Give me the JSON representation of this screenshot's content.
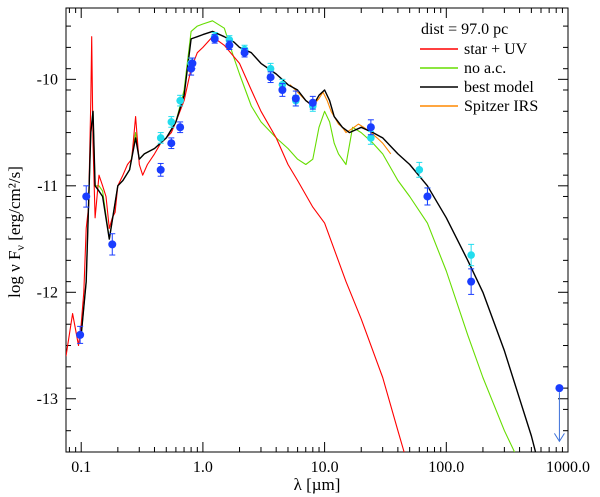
{
  "chart_data": {
    "type": "line",
    "annotation": "dist = 97.0 pc",
    "xlabel": "λ [µm]",
    "ylabel": "log ν F",
    "ylabel_sub": "ν",
    "ylabel_units": " [erg/cm²/s]",
    "xscale": "log",
    "xlim": [
      0.075,
      1000.0
    ],
    "ylim": [
      -13.5,
      -9.33
    ],
    "x_ticks": [
      {
        "value": 0.1,
        "label": "0.1"
      },
      {
        "value": 1.0,
        "label": "1.0"
      },
      {
        "value": 10.0,
        "label": "10.0"
      },
      {
        "value": 100.0,
        "label": "100.0"
      },
      {
        "value": 1000.0,
        "label": "1000.0"
      }
    ],
    "y_ticks": [
      {
        "value": -10,
        "label": "-10"
      },
      {
        "value": -11,
        "label": "-11"
      },
      {
        "value": -12,
        "label": "-12"
      },
      {
        "value": -13,
        "label": "-13"
      }
    ],
    "legend_position": "top-right",
    "series": [
      {
        "name": "star + UV",
        "color": "#ff0000",
        "x": [
          0.075,
          0.085,
          0.095,
          0.1,
          0.105,
          0.11,
          0.115,
          0.12,
          0.122,
          0.125,
          0.13,
          0.14,
          0.15,
          0.16,
          0.17,
          0.18,
          0.19,
          0.2,
          0.22,
          0.24,
          0.26,
          0.28,
          0.3,
          0.32,
          0.35,
          0.4,
          0.45,
          0.5,
          0.55,
          0.6,
          0.7,
          0.8,
          0.9,
          1.0,
          1.2,
          1.5,
          2.0,
          2.5,
          3.0,
          4.0,
          5.0,
          6.0,
          8.0,
          10.0,
          15.0,
          20.0,
          30.0,
          40.0,
          45.0
        ],
        "y": [
          -12.6,
          -12.2,
          -12.5,
          -12.3,
          -12.0,
          -11.4,
          -11.2,
          -10.2,
          -9.6,
          -10.6,
          -11.3,
          -10.9,
          -11.0,
          -11.1,
          -11.4,
          -11.3,
          -11.25,
          -11.0,
          -10.9,
          -10.8,
          -10.75,
          -10.35,
          -10.8,
          -10.9,
          -10.8,
          -10.7,
          -10.6,
          -10.55,
          -10.5,
          -10.4,
          -10.2,
          -9.9,
          -9.75,
          -9.7,
          -9.6,
          -9.68,
          -9.85,
          -10.1,
          -10.3,
          -10.55,
          -10.8,
          -10.95,
          -11.2,
          -11.35,
          -11.9,
          -12.25,
          -12.8,
          -13.3,
          -13.5
        ]
      },
      {
        "name": "no a.c.",
        "color": "#66dd00",
        "x": [
          0.1,
          0.11,
          0.12,
          0.125,
          0.13,
          0.14,
          0.15,
          0.17,
          0.2,
          0.22,
          0.25,
          0.28,
          0.3,
          0.33,
          0.4,
          0.5,
          0.6,
          0.7,
          0.8,
          0.9,
          1.0,
          1.2,
          1.5,
          1.8,
          2.0,
          2.5,
          3.0,
          4.0,
          5.0,
          6.0,
          7.0,
          8.0,
          9.0,
          10.0,
          11.0,
          12.0,
          13.0,
          15.0,
          17.0,
          20.0,
          25.0,
          30.0,
          40.0,
          50.0,
          70.0,
          100.0,
          150.0,
          200.0,
          300.0,
          400.0
        ],
        "y": [
          -12.4,
          -11.9,
          -10.5,
          -10.3,
          -11.0,
          -11.0,
          -11.05,
          -11.5,
          -11.0,
          -10.95,
          -10.85,
          -10.5,
          -10.75,
          -10.7,
          -10.65,
          -10.55,
          -10.4,
          -10.1,
          -9.55,
          -9.5,
          -9.48,
          -9.45,
          -9.52,
          -9.8,
          -9.95,
          -10.25,
          -10.4,
          -10.55,
          -10.65,
          -10.75,
          -10.8,
          -10.75,
          -10.45,
          -10.3,
          -10.4,
          -10.6,
          -10.7,
          -10.8,
          -10.45,
          -10.5,
          -10.6,
          -10.7,
          -10.95,
          -11.1,
          -11.35,
          -11.8,
          -12.4,
          -12.8,
          -13.3,
          -13.6
        ]
      },
      {
        "name": "best model",
        "color": "#000000",
        "x": [
          0.1,
          0.11,
          0.12,
          0.125,
          0.13,
          0.14,
          0.15,
          0.17,
          0.2,
          0.22,
          0.25,
          0.28,
          0.3,
          0.33,
          0.4,
          0.5,
          0.6,
          0.7,
          0.8,
          0.9,
          1.0,
          1.2,
          1.5,
          1.8,
          2.0,
          2.5,
          3.0,
          4.0,
          5.0,
          6.0,
          7.0,
          8.0,
          9.0,
          10.0,
          11.0,
          12.0,
          14.0,
          16.0,
          20.0,
          25.0,
          30.0,
          40.0,
          50.0,
          70.0,
          100.0,
          150.0,
          200.0,
          300.0,
          400.0,
          500.0,
          600.0
        ],
        "y": [
          -12.4,
          -11.9,
          -10.5,
          -10.3,
          -11.0,
          -11.05,
          -11.1,
          -11.5,
          -11.0,
          -10.95,
          -10.85,
          -10.55,
          -10.75,
          -10.7,
          -10.65,
          -10.55,
          -10.4,
          -10.15,
          -9.62,
          -9.6,
          -9.58,
          -9.55,
          -9.6,
          -9.65,
          -9.7,
          -9.75,
          -9.85,
          -9.95,
          -10.05,
          -10.1,
          -10.2,
          -10.25,
          -10.15,
          -10.1,
          -10.2,
          -10.35,
          -10.45,
          -10.5,
          -10.45,
          -10.5,
          -10.55,
          -10.7,
          -10.8,
          -11.0,
          -11.3,
          -11.7,
          -12.0,
          -12.55,
          -13.0,
          -13.35,
          -13.7
        ]
      },
      {
        "name": "Spitzer IRS",
        "color": "#ff8800",
        "x": [
          5.2,
          6.0,
          7.0,
          7.5,
          8.0,
          9.0,
          9.7,
          10.5,
          11.3,
          12.0,
          13.0,
          14.0,
          15.0,
          17.0,
          19.0,
          21.0,
          24.0,
          27.0,
          30.0,
          35.0
        ],
        "y": [
          -10.05,
          -10.12,
          -10.2,
          -10.22,
          -10.25,
          -10.18,
          -10.12,
          -10.2,
          -10.3,
          -10.35,
          -10.42,
          -10.45,
          -10.5,
          -10.46,
          -10.42,
          -10.45,
          -10.5,
          -10.55,
          -10.6,
          -10.7
        ]
      }
    ],
    "photometry_blue": {
      "color": "#1a3dff",
      "x": [
        0.098,
        0.11,
        0.18,
        0.45,
        0.55,
        0.65,
        0.8,
        0.82,
        1.25,
        1.65,
        2.2,
        3.6,
        4.5,
        5.8,
        8.0,
        24.0,
        70.0,
        160.0,
        850.0
      ],
      "y": [
        -12.4,
        -11.1,
        -11.55,
        -10.85,
        -10.6,
        -10.45,
        -9.9,
        -9.85,
        -9.62,
        -9.68,
        -9.75,
        -9.98,
        -10.1,
        -10.18,
        -10.22,
        -10.45,
        -11.1,
        -11.9,
        -12.9
      ],
      "err": [
        0.08,
        0.1,
        0.1,
        0.06,
        0.05,
        0.05,
        0.06,
        0.05,
        0.04,
        0.04,
        0.04,
        0.05,
        0.06,
        0.07,
        0.06,
        0.07,
        0.08,
        0.12,
        0.0
      ]
    },
    "photometry_cyan": {
      "color": "#22ddee",
      "x": [
        0.45,
        0.55,
        0.65,
        0.8,
        1.25,
        1.65,
        2.2,
        3.6,
        4.5,
        5.8,
        8.0,
        24.0,
        60.0,
        70.0,
        160.0
      ],
      "y": [
        -10.55,
        -10.4,
        -10.2,
        -9.85,
        -9.6,
        -9.63,
        -9.72,
        -9.9,
        -10.05,
        -10.2,
        -10.25,
        -10.55,
        -10.85,
        -11.1,
        -11.65
      ],
      "err": [
        0.05,
        0.05,
        0.05,
        0.05,
        0.04,
        0.04,
        0.04,
        0.05,
        0.05,
        0.05,
        0.05,
        0.06,
        0.07,
        0.08,
        0.1
      ]
    },
    "upper_limits": [
      {
        "x": 850.0,
        "y_from": -12.9,
        "y_to": -13.4
      }
    ]
  }
}
